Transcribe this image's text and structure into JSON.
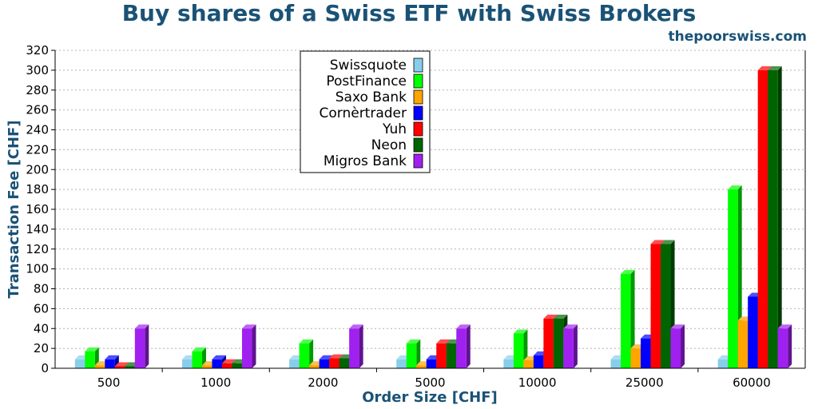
{
  "header": {
    "title": "Buy shares of a Swiss ETF with Swiss Brokers",
    "source": "thepoorswiss.com"
  },
  "chart_data": {
    "type": "bar",
    "title": "Buy shares of a Swiss ETF with Swiss Brokers",
    "xlabel": "Order Size [CHF]",
    "ylabel": "Transaction Fee [CHF]",
    "ylim": [
      0,
      320
    ],
    "yticks": [
      0,
      20,
      40,
      60,
      80,
      100,
      120,
      140,
      160,
      180,
      200,
      220,
      240,
      260,
      280,
      300,
      320
    ],
    "grid": true,
    "legend_position": "top-center",
    "categories": [
      "500",
      "1000",
      "2000",
      "5000",
      "10000",
      "25000",
      "60000"
    ],
    "series": [
      {
        "name": "Swissquote",
        "color": "#87ceeb",
        "values": [
          9,
          9,
          9,
          9,
          9,
          9,
          9
        ]
      },
      {
        "name": "PostFinance",
        "color": "#00ff00",
        "values": [
          17,
          17,
          25,
          25,
          35,
          95,
          180
        ]
      },
      {
        "name": "Saxo Bank",
        "color": "#ffa500",
        "values": [
          3,
          3,
          3,
          3,
          8,
          20,
          48
        ]
      },
      {
        "name": "Cornèrtrader",
        "color": "#0000ff",
        "values": [
          9,
          9,
          9,
          9,
          13,
          30,
          72
        ]
      },
      {
        "name": "Yuh",
        "color": "#ff0000",
        "values": [
          2,
          5,
          10,
          25,
          50,
          125,
          300
        ]
      },
      {
        "name": "Neon",
        "color": "#006400",
        "values": [
          2,
          5,
          10,
          25,
          50,
          125,
          300
        ]
      },
      {
        "name": "Migros Bank",
        "color": "#a020f0",
        "values": [
          40,
          40,
          40,
          40,
          40,
          40,
          40
        ]
      }
    ]
  }
}
